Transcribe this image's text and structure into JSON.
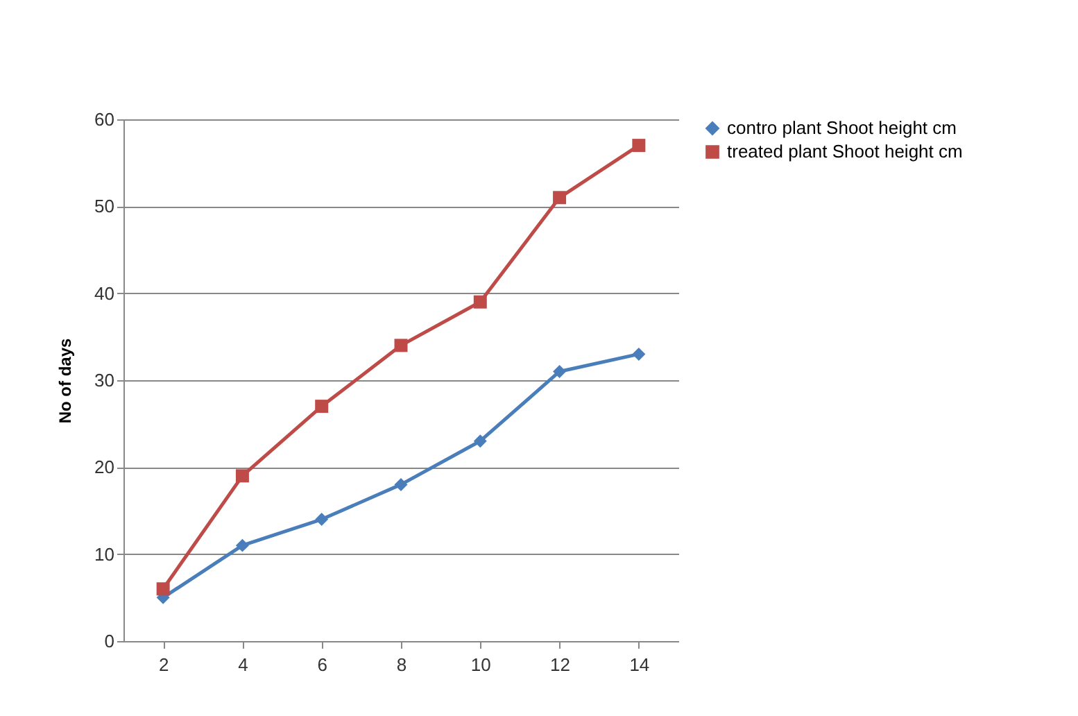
{
  "chart_data": {
    "type": "line",
    "ylabel": "No of days",
    "categories": [
      "2",
      "4",
      "6",
      "8",
      "10",
      "12",
      "14"
    ],
    "series": [
      {
        "name": "contro plant Shoot height cm",
        "color": "#4a7ebb",
        "marker": "diamond",
        "values": [
          5,
          11,
          14,
          18,
          23,
          31,
          33
        ]
      },
      {
        "name": "treated plant Shoot height cm",
        "color": "#be4b48",
        "marker": "square",
        "values": [
          6,
          19,
          27,
          34,
          39,
          51,
          57
        ]
      }
    ],
    "ylim": [
      0,
      60
    ],
    "yticks": [
      0,
      10,
      20,
      30,
      40,
      50,
      60
    ],
    "grid": "y",
    "legend": "right"
  }
}
